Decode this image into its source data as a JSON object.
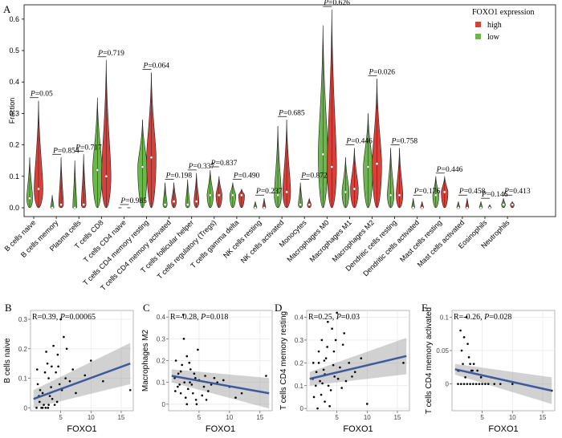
{
  "panels": {
    "A": "A",
    "B": "B",
    "C": "C",
    "D": "D",
    "E": "E"
  },
  "chart_data": [
    {
      "type": "violin",
      "ylabel": "Fraction",
      "ylim": [
        0,
        0.62
      ],
      "yticks": [
        "0.0",
        "0.1",
        "0.2",
        "0.3",
        "0.4",
        "0.5",
        "0.6"
      ],
      "legend": {
        "title": "FOXO1 expression",
        "placement": "top-right",
        "entries": [
          {
            "name": "high",
            "color": "#d9403a"
          },
          {
            "name": "low",
            "color": "#6ab84a"
          }
        ]
      },
      "colors": {
        "high": "#d9403a",
        "low": "#6ab84a",
        "outline": "#222222"
      },
      "categories": [
        "B cells naive",
        "B cells memory",
        "Plasma cells",
        "T cells CD8",
        "T cells CD4 naive",
        "T cells CD4 memory resting",
        "T cells CD4 memory activated",
        "T cells follicular helper",
        "T cells regulatory (Tregs)",
        "T cells gamma delta",
        "NK cells resting",
        "NK cells activated",
        "Monocytes",
        "Macrophages M0",
        "Macrophages M1",
        "Macrophages M2",
        "Dendritic cells resting",
        "Dendritic cells activated",
        "Mast cells resting",
        "Mast cells activated",
        "Eosinophils",
        "Neutrophils"
      ],
      "pvalues": [
        "P=0.05",
        "P=0.854",
        "P=0.717",
        "P=0.719",
        "P=0.985",
        "P=0.064",
        "P=0.198",
        "P=0.337",
        "P=0.837",
        "P=0.490",
        "P=0.237",
        "P=0.685",
        "P=0.872",
        "P=0.626",
        "P=0.446",
        "P=0.026",
        "P=0.758",
        "P=0.176",
        "P=0.446",
        "P=0.458",
        "P=0.146",
        "P=0.413"
      ],
      "series": [
        {
          "name": "low",
          "max": [
            0.16,
            0.04,
            0.15,
            0.35,
            0.0,
            0.28,
            0.08,
            0.09,
            0.12,
            0.08,
            0.02,
            0.26,
            0.08,
            0.58,
            0.16,
            0.3,
            0.19,
            0.03,
            0.1,
            0.02,
            0.02,
            0.03
          ],
          "median": [
            0.03,
            0.0,
            0.0,
            0.12,
            0.0,
            0.13,
            0.01,
            0.01,
            0.04,
            0.04,
            0.0,
            0.04,
            0.01,
            0.17,
            0.05,
            0.13,
            0.04,
            0.0,
            0.04,
            0.0,
            0.0,
            0.01
          ]
        },
        {
          "name": "high",
          "max": [
            0.34,
            0.16,
            0.17,
            0.47,
            0.0,
            0.43,
            0.08,
            0.11,
            0.1,
            0.06,
            0.03,
            0.28,
            0.03,
            0.63,
            0.19,
            0.41,
            0.19,
            0.02,
            0.1,
            0.03,
            0.01,
            0.02
          ],
          "median": [
            0.06,
            0.01,
            0.01,
            0.1,
            0.0,
            0.16,
            0.02,
            0.02,
            0.04,
            0.04,
            0.0,
            0.05,
            0.01,
            0.13,
            0.06,
            0.14,
            0.04,
            0.0,
            0.05,
            0.0,
            0.0,
            0.01
          ]
        }
      ]
    },
    {
      "type": "scatter",
      "panel": "B",
      "annotation": "R=0.39, P=0.00065",
      "xlabel": "FOXO1",
      "ylabel": "B cells naive",
      "xlim": [
        0,
        17
      ],
      "ylim": [
        -0.01,
        0.33
      ],
      "xticks": [
        5,
        10,
        15
      ],
      "yticks": [
        0.0,
        0.1,
        0.2,
        0.3
      ],
      "fit": {
        "x": [
          0.5,
          16.5
        ],
        "y": [
          0.03,
          0.15
        ],
        "band_lower": [
          0.0,
          0.08
        ],
        "band_upper": [
          0.06,
          0.22
        ]
      },
      "points": [
        [
          1,
          0.0
        ],
        [
          1.5,
          0.02
        ],
        [
          2,
          0.05
        ],
        [
          2.5,
          0.0
        ],
        [
          3,
          0.1
        ],
        [
          3.5,
          0.14
        ],
        [
          4,
          0.01
        ],
        [
          4.5,
          0.18
        ],
        [
          5,
          0.3
        ],
        [
          5.2,
          0.06
        ],
        [
          1.2,
          0.08
        ],
        [
          2.2,
          0.01
        ],
        [
          3.2,
          0.04
        ],
        [
          4.2,
          0.12
        ],
        [
          1.8,
          0.0
        ],
        [
          2.8,
          0.15
        ],
        [
          6,
          0.2
        ],
        [
          6.5,
          0.09
        ],
        [
          7,
          0.13
        ],
        [
          3.6,
          0.03
        ],
        [
          1.1,
          0.13
        ],
        [
          2.4,
          0.12
        ],
        [
          4.8,
          0.08
        ],
        [
          12,
          0.09
        ],
        [
          16.5,
          0.06
        ],
        [
          5.5,
          0.24
        ],
        [
          3.0,
          0.01
        ],
        [
          2.0,
          0.0
        ],
        [
          4.4,
          0.02
        ],
        [
          1.6,
          0.06
        ],
        [
          7.5,
          0.05
        ],
        [
          9,
          0.11
        ],
        [
          10,
          0.16
        ],
        [
          2.6,
          0.19
        ],
        [
          3.8,
          0.21
        ],
        [
          4.6,
          0.14
        ],
        [
          1.4,
          0.04
        ],
        [
          5.8,
          0.1
        ],
        [
          3.4,
          0.07
        ],
        [
          2.9,
          0.0
        ]
      ]
    },
    {
      "type": "scatter",
      "panel": "C",
      "annotation": "R=-0.28, P=0.018",
      "xlabel": "FOXO1",
      "ylabel": "Macrophages M2",
      "xlim": [
        0,
        17
      ],
      "ylim": [
        -0.03,
        0.43
      ],
      "xticks": [
        5,
        10,
        15
      ],
      "yticks": [
        0.0,
        0.1,
        0.2,
        0.3,
        0.4
      ],
      "fit": {
        "x": [
          0.5,
          16.5
        ],
        "y": [
          0.13,
          0.05
        ],
        "band_lower": [
          0.1,
          -0.02
        ],
        "band_upper": [
          0.16,
          0.12
        ]
      },
      "points": [
        [
          1,
          0.12
        ],
        [
          1.5,
          0.08
        ],
        [
          2,
          0.15
        ],
        [
          2.5,
          0.3
        ],
        [
          3,
          0.22
        ],
        [
          3.5,
          0.1
        ],
        [
          4,
          0.05
        ],
        [
          4.5,
          0.02
        ],
        [
          5,
          0.11
        ],
        [
          5.5,
          0.04
        ],
        [
          1.2,
          0.2
        ],
        [
          2.2,
          0.18
        ],
        [
          3.2,
          0.07
        ],
        [
          4.2,
          0.14
        ],
        [
          1.8,
          0.09
        ],
        [
          2.8,
          0.03
        ],
        [
          6,
          0.13
        ],
        [
          6.5,
          0.06
        ],
        [
          7,
          0.09
        ],
        [
          3.6,
          0.16
        ],
        [
          2.4,
          0.41
        ],
        [
          4.8,
          0.25
        ],
        [
          10,
          0.08
        ],
        [
          11,
          0.03
        ],
        [
          16,
          0.13
        ],
        [
          7.5,
          0.12
        ],
        [
          8,
          0.1
        ],
        [
          3.0,
          0.0
        ],
        [
          2.0,
          0.05
        ],
        [
          4.4,
          0.12
        ],
        [
          1.6,
          0.14
        ],
        [
          5.8,
          0.08
        ],
        [
          9,
          0.11
        ],
        [
          3.4,
          0.19
        ],
        [
          2.6,
          0.1
        ],
        [
          1.1,
          0.06
        ],
        [
          4.6,
          0.0
        ],
        [
          6.2,
          0.02
        ],
        [
          12,
          0.05
        ],
        [
          3.8,
          0.09
        ]
      ]
    },
    {
      "type": "scatter",
      "panel": "D",
      "annotation": "R=0.25, P=0.03",
      "xlabel": "FOXO1",
      "ylabel": "T cells CD4 memory resting",
      "xlim": [
        0,
        17
      ],
      "ylim": [
        -0.01,
        0.43
      ],
      "xticks": [
        5,
        10,
        15
      ],
      "yticks": [
        0.0,
        0.1,
        0.2,
        0.3,
        0.4
      ],
      "fit": {
        "x": [
          0.5,
          16.5
        ],
        "y": [
          0.13,
          0.23
        ],
        "band_lower": [
          0.1,
          0.15
        ],
        "band_upper": [
          0.16,
          0.31
        ]
      },
      "points": [
        [
          1,
          0.13
        ],
        [
          1.5,
          0.1
        ],
        [
          2,
          0.2
        ],
        [
          2.5,
          0.3
        ],
        [
          3,
          0.15
        ],
        [
          3.5,
          0.38
        ],
        [
          4,
          0.08
        ],
        [
          4.5,
          0.25
        ],
        [
          5,
          0.42
        ],
        [
          5.5,
          0.18
        ],
        [
          1.2,
          0.05
        ],
        [
          2.2,
          0.12
        ],
        [
          3.2,
          0.22
        ],
        [
          4.2,
          0.35
        ],
        [
          1.8,
          0.0
        ],
        [
          2.8,
          0.17
        ],
        [
          6,
          0.28
        ],
        [
          6.5,
          0.12
        ],
        [
          7,
          0.2
        ],
        [
          3.6,
          0.1
        ],
        [
          2.4,
          0.06
        ],
        [
          4.8,
          0.3
        ],
        [
          8,
          0.16
        ],
        [
          9,
          0.22
        ],
        [
          10,
          0.02
        ],
        [
          16,
          0.2
        ],
        [
          7.5,
          0.14
        ],
        [
          3.0,
          0.03
        ],
        [
          2.0,
          0.25
        ],
        [
          4.4,
          0.19
        ],
        [
          1.6,
          0.16
        ],
        [
          5.8,
          0.09
        ],
        [
          3.4,
          0.27
        ],
        [
          2.6,
          0.11
        ],
        [
          1.1,
          0.2
        ],
        [
          4.6,
          0.14
        ],
        [
          6.2,
          0.33
        ],
        [
          3.8,
          0.01
        ],
        [
          5.2,
          0.13
        ],
        [
          2.9,
          0.21
        ]
      ]
    },
    {
      "type": "scatter",
      "panel": "E",
      "annotation": "R=-0.26, P=0.028",
      "xlabel": "FOXO1",
      "ylabel": "T cells CD4 memory activated",
      "xlim": [
        0,
        17
      ],
      "ylim": [
        -0.04,
        0.11
      ],
      "xticks": [
        5,
        10,
        15
      ],
      "yticks": [
        0.0,
        0.05,
        0.1
      ],
      "fit": {
        "x": [
          0.5,
          16.5
        ],
        "y": [
          0.022,
          -0.01
        ],
        "band_lower": [
          0.014,
          -0.03
        ],
        "band_upper": [
          0.03,
          0.01
        ]
      },
      "points": [
        [
          1,
          0.0
        ],
        [
          1.5,
          0.0
        ],
        [
          2,
          0.0
        ],
        [
          2.5,
          0.0
        ],
        [
          3,
          0.0
        ],
        [
          3.5,
          0.0
        ],
        [
          4,
          0.0
        ],
        [
          4.5,
          0.0
        ],
        [
          5,
          0.0
        ],
        [
          5.5,
          0.0
        ],
        [
          6,
          0.0
        ],
        [
          7,
          0.0
        ],
        [
          8,
          0.0
        ],
        [
          1.2,
          0.02
        ],
        [
          1.8,
          0.03
        ],
        [
          2.2,
          0.01
        ],
        [
          2.8,
          0.04
        ],
        [
          3.2,
          0.02
        ],
        [
          1.4,
          0.08
        ],
        [
          2.4,
          0.1
        ],
        [
          2.6,
          0.06
        ],
        [
          3.6,
          0.03
        ],
        [
          4.2,
          0.02
        ],
        [
          1.6,
          0.05
        ],
        [
          2.0,
          0.07
        ],
        [
          3.0,
          0.03
        ],
        [
          4.8,
          0.01
        ],
        [
          6.5,
          0.01
        ],
        [
          10,
          0.0
        ],
        [
          16.5,
          -0.01
        ],
        [
          1.0,
          0.02
        ],
        [
          3.4,
          0.02
        ]
      ]
    }
  ]
}
